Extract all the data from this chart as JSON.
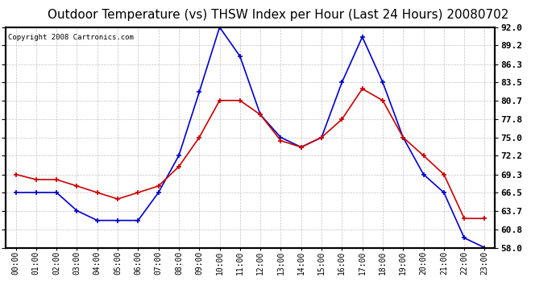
{
  "title": "Outdoor Temperature (vs) THSW Index per Hour (Last 24 Hours) 20080702",
  "copyright": "Copyright 2008 Cartronics.com",
  "hours": [
    "00:00",
    "01:00",
    "02:00",
    "03:00",
    "04:00",
    "05:00",
    "06:00",
    "07:00",
    "08:00",
    "09:00",
    "10:00",
    "11:00",
    "12:00",
    "13:00",
    "14:00",
    "15:00",
    "16:00",
    "17:00",
    "18:00",
    "19:00",
    "20:00",
    "21:00",
    "22:00",
    "23:00"
  ],
  "temp": [
    69.3,
    68.5,
    68.5,
    67.5,
    66.5,
    65.5,
    66.5,
    67.5,
    70.5,
    75.0,
    80.7,
    80.7,
    78.5,
    74.5,
    73.5,
    75.0,
    77.8,
    82.5,
    80.7,
    75.0,
    72.2,
    69.3,
    62.5,
    62.5
  ],
  "thsw": [
    66.5,
    66.5,
    66.5,
    63.7,
    62.2,
    62.2,
    62.2,
    66.5,
    72.2,
    82.0,
    92.0,
    87.5,
    78.5,
    75.0,
    73.5,
    75.0,
    83.5,
    90.5,
    83.5,
    75.0,
    69.3,
    66.5,
    59.5,
    58.0
  ],
  "temp_color": "#cc0000",
  "thsw_color": "#0000cc",
  "yticks": [
    58.0,
    60.8,
    63.7,
    66.5,
    69.3,
    72.2,
    75.0,
    77.8,
    80.7,
    83.5,
    86.3,
    89.2,
    92.0
  ],
  "ymin": 58.0,
  "ymax": 92.0,
  "bg_color": "#ffffff",
  "plot_bg": "#ffffff",
  "grid_color": "#aaaaaa",
  "title_fontsize": 11,
  "copyright_fontsize": 6.5
}
